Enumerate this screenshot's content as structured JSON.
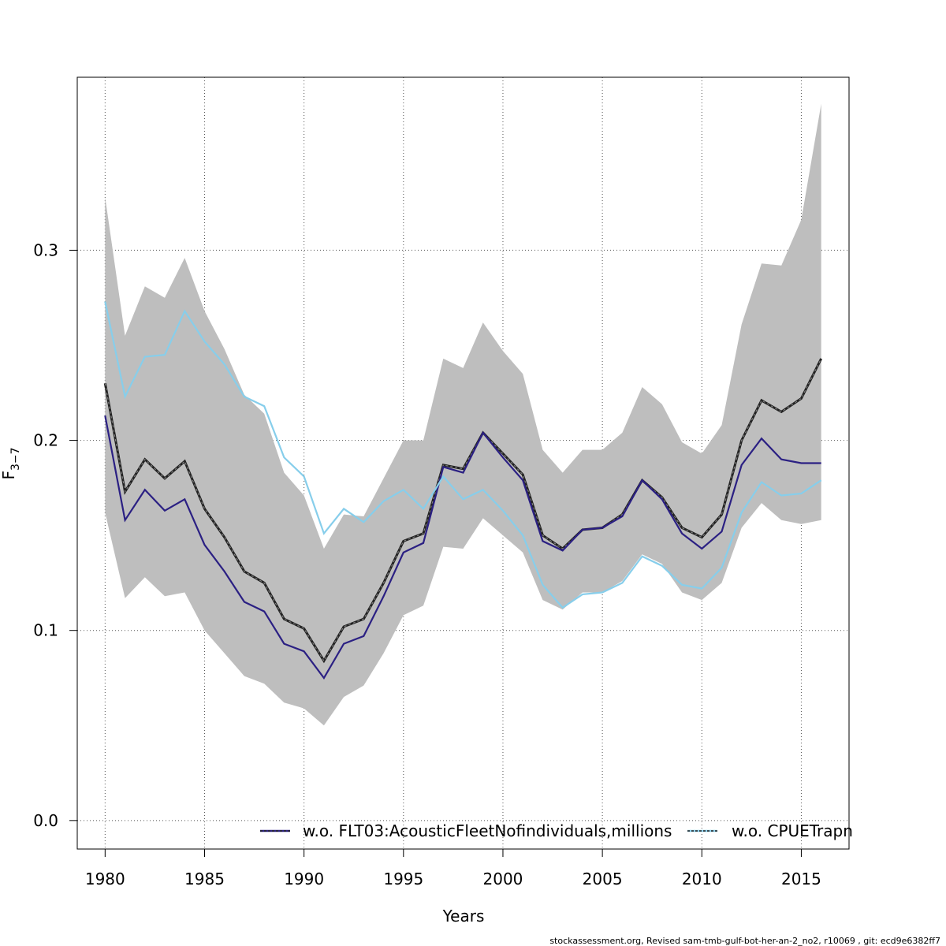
{
  "chart_data": {
    "type": "line",
    "xlabel": "Years",
    "ylabel": "F",
    "ylabel_subscript": "3−7",
    "xlim": [
      1978.6,
      2017.4
    ],
    "ylim": [
      -0.015,
      0.391
    ],
    "x_ticks": [
      1980,
      1985,
      1990,
      1995,
      2000,
      2005,
      2010,
      2015
    ],
    "x_tick_labels": [
      "1980",
      "1985",
      "1990",
      "1995",
      "2000",
      "2005",
      "2010",
      "2015"
    ],
    "y_ticks": [
      0.0,
      0.1,
      0.2,
      0.3
    ],
    "y_tick_labels": [
      "0.0",
      "0.1",
      "0.2",
      "0.3"
    ],
    "grid": true,
    "legend_position": "bottom-right",
    "x": [
      1980,
      1981,
      1982,
      1983,
      1984,
      1985,
      1986,
      1987,
      1988,
      1989,
      1990,
      1991,
      1992,
      1993,
      1994,
      1995,
      1996,
      1997,
      1998,
      1999,
      2000,
      2001,
      2002,
      2003,
      2004,
      2005,
      2006,
      2007,
      2008,
      2009,
      2010,
      2011,
      2012,
      2013,
      2014,
      2015,
      2016
    ],
    "confidence_band": {
      "upper": [
        0.328,
        0.255,
        0.281,
        0.275,
        0.296,
        0.268,
        0.248,
        0.224,
        0.214,
        0.183,
        0.171,
        0.143,
        0.161,
        0.16,
        0.18,
        0.2,
        0.2,
        0.243,
        0.238,
        0.262,
        0.247,
        0.235,
        0.195,
        0.183,
        0.195,
        0.195,
        0.204,
        0.228,
        0.219,
        0.199,
        0.193,
        0.208,
        0.261,
        0.293,
        0.292,
        0.316,
        0.377
      ],
      "lower": [
        0.162,
        0.117,
        0.128,
        0.118,
        0.12,
        0.1,
        0.088,
        0.076,
        0.072,
        0.062,
        0.059,
        0.05,
        0.065,
        0.071,
        0.088,
        0.108,
        0.113,
        0.144,
        0.143,
        0.159,
        0.15,
        0.141,
        0.116,
        0.111,
        0.12,
        0.12,
        0.126,
        0.14,
        0.135,
        0.12,
        0.116,
        0.125,
        0.154,
        0.167,
        0.158,
        0.156,
        0.158
      ]
    },
    "series": [
      {
        "name": "",
        "color": "#222222",
        "dashed": true,
        "values": [
          0.23,
          0.173,
          0.19,
          0.18,
          0.189,
          0.164,
          0.149,
          0.131,
          0.125,
          0.106,
          0.101,
          0.084,
          0.102,
          0.106,
          0.125,
          0.147,
          0.151,
          0.187,
          0.185,
          0.204,
          0.193,
          0.182,
          0.15,
          0.143,
          0.153,
          0.154,
          0.161,
          0.179,
          0.17,
          0.154,
          0.149,
          0.161,
          0.2,
          0.221,
          0.215,
          0.222,
          0.243
        ]
      },
      {
        "name": "w.o. FLT03:AcousticFleetNofindividuals,millions",
        "color": "#2b2083",
        "values": [
          0.213,
          0.158,
          0.174,
          0.163,
          0.169,
          0.145,
          0.131,
          0.115,
          0.11,
          0.093,
          0.089,
          0.075,
          0.093,
          0.097,
          0.118,
          0.141,
          0.146,
          0.186,
          0.183,
          0.204,
          0.191,
          0.179,
          0.147,
          0.142,
          0.153,
          0.154,
          0.16,
          0.179,
          0.169,
          0.151,
          0.143,
          0.152,
          0.187,
          0.201,
          0.19,
          0.188,
          0.188
        ]
      },
      {
        "name": "w.o. CPUETrapn",
        "color": "#87ceeb",
        "values": [
          0.273,
          0.223,
          0.244,
          0.245,
          0.268,
          0.252,
          0.24,
          0.223,
          0.218,
          0.191,
          0.181,
          0.151,
          0.164,
          0.157,
          0.168,
          0.174,
          0.164,
          0.181,
          0.169,
          0.174,
          0.163,
          0.15,
          0.124,
          0.112,
          0.119,
          0.12,
          0.125,
          0.139,
          0.134,
          0.124,
          0.122,
          0.133,
          0.162,
          0.178,
          0.171,
          0.172,
          0.179
        ]
      }
    ]
  },
  "footer_text": "stockassessment.org, Revised sam-tmb-gulf-bot-her-an-2_no2, r10069 , git: ecd9e6382ff7"
}
